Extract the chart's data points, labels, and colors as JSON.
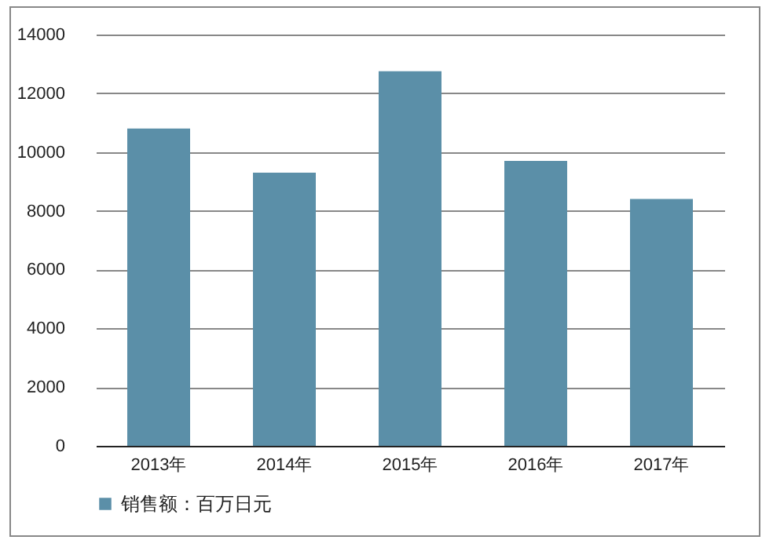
{
  "chart_data": {
    "type": "bar",
    "categories": [
      "2013年",
      "2014年",
      "2015年",
      "2016年",
      "2017年"
    ],
    "series": [
      {
        "name": "销售额：百万日元",
        "color": "#5b8fa8",
        "values": [
          10800,
          9300,
          12750,
          9700,
          8400
        ]
      }
    ],
    "ylim": [
      0,
      14000
    ],
    "yticks": [
      0,
      2000,
      4000,
      6000,
      8000,
      10000,
      12000,
      14000
    ],
    "grid": "y",
    "legend": "bottom"
  }
}
